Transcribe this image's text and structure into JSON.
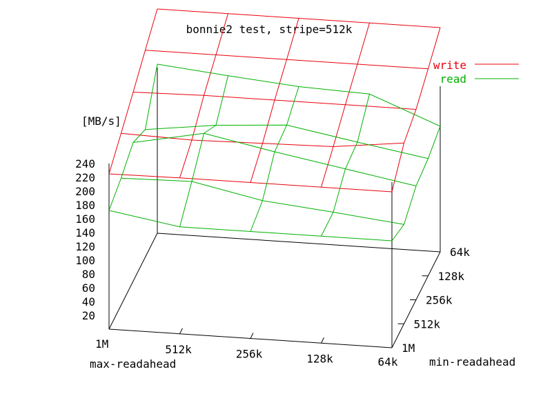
{
  "chart_data": {
    "type": "surface3d",
    "title": "bonnie2 test, stripe=512k",
    "zlabel": "[MB/s]",
    "xlabel": "max-readahead",
    "ylabel": "min-readahead",
    "x_ticks": [
      "1M",
      "512k",
      "256k",
      "128k",
      "64k"
    ],
    "y_ticks": [
      "1M",
      "512k",
      "256k",
      "128k",
      "64k"
    ],
    "z_ticks": [
      "20",
      "40",
      "60",
      "80",
      "100",
      "120",
      "140",
      "160",
      "180",
      "200",
      "220",
      "240"
    ],
    "zlim": [
      0,
      240
    ],
    "legend_position": "top-right",
    "colors": {
      "write": "#e8000b",
      "read": "#00b000"
    },
    "series": [
      {
        "name": "write",
        "values": [
          [
            225,
            226,
            226,
            226,
            226
          ],
          [
            249,
            246,
            248,
            250,
            262
          ],
          [
            274,
            276,
            276,
            276,
            276
          ],
          [
            300,
            300,
            300,
            300,
            300
          ],
          [
            325,
            325,
            325,
            325,
            325
          ]
        ]
      },
      {
        "name": "read",
        "values": [
          [
            172,
            155,
            155,
            155,
            155
          ],
          [
            184,
            186,
            165,
            155,
            144
          ],
          [
            201,
            221,
            201,
            183,
            165
          ],
          [
            185,
            198,
            205,
            187,
            170
          ],
          [
            245,
            235,
            226,
            222,
            182
          ]
        ]
      }
    ]
  }
}
